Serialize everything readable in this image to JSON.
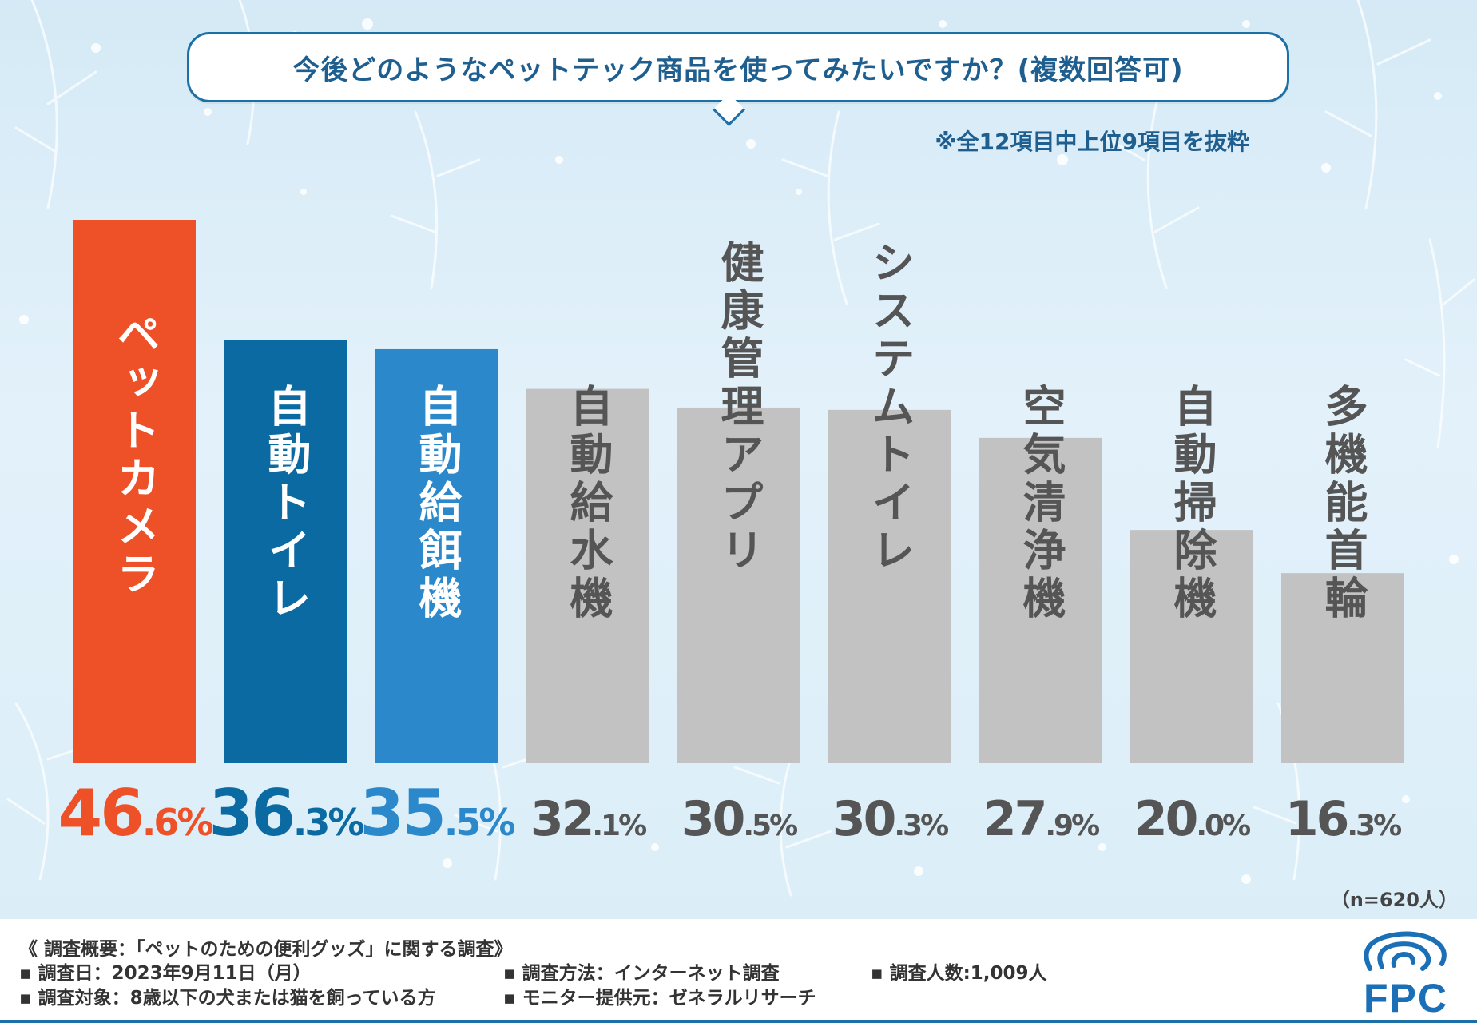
{
  "title": "今後どのようなペットテック商品を使ってみたいですか？(複数回答可)",
  "note": "※全12項目中上位9項目を抜粋",
  "sample_size": "（n=620人）",
  "chart_data": {
    "type": "bar",
    "title": "今後どのようなペットテック商品を使ってみたいですか？(複数回答可)",
    "categories": [
      "ペットカメラ",
      "自動トイレ",
      "自動給餌機",
      "自動給水機",
      "健康管理アプリ",
      "システムトイレ",
      "空気清浄機",
      "自動掃除機",
      "多機能首輪"
    ],
    "values": [
      46.6,
      36.3,
      35.5,
      32.1,
      30.5,
      30.3,
      27.9,
      20.0,
      16.3
    ],
    "value_labels": [
      "46.6%",
      "36.3%",
      "35.5%",
      "32.1%",
      "30.5%",
      "30.3%",
      "27.9%",
      "20.0%",
      "16.3%"
    ],
    "bar_colors": [
      "#ee5128",
      "#0a6aa1",
      "#2b88cb",
      "#c2c2c2",
      "#c2c2c2",
      "#c2c2c2",
      "#c2c2c2",
      "#c2c2c2",
      "#c2c2c2"
    ],
    "label_colors": [
      "#ee5128",
      "#0a6aa1",
      "#2b88cb",
      "#555555",
      "#555555",
      "#555555",
      "#555555",
      "#555555",
      "#555555"
    ],
    "category_text_colors": [
      "#ffffff",
      "#ffffff",
      "#ffffff",
      "#555555",
      "#555555",
      "#555555",
      "#555555",
      "#555555",
      "#555555"
    ],
    "ylim": [
      0,
      50
    ],
    "xlabel": "",
    "ylabel": "",
    "grid": false,
    "unit": "%"
  },
  "survey": {
    "header": "《 調査概要：「ペットのための便利グッズ」に関する調査》",
    "date": "▪ 調査日：2023年9月11日（月）",
    "target": "▪ 調査対象：8歳以下の犬または猫を飼っている方",
    "method": "▪ 調査方法：インターネット調査",
    "provider": "▪ モニター提供元：ゼネラルリサーチ",
    "respondents": "▪ 調査人数:1,009人"
  },
  "logo": {
    "text": "FPC",
    "color": "#1a6fb6"
  }
}
